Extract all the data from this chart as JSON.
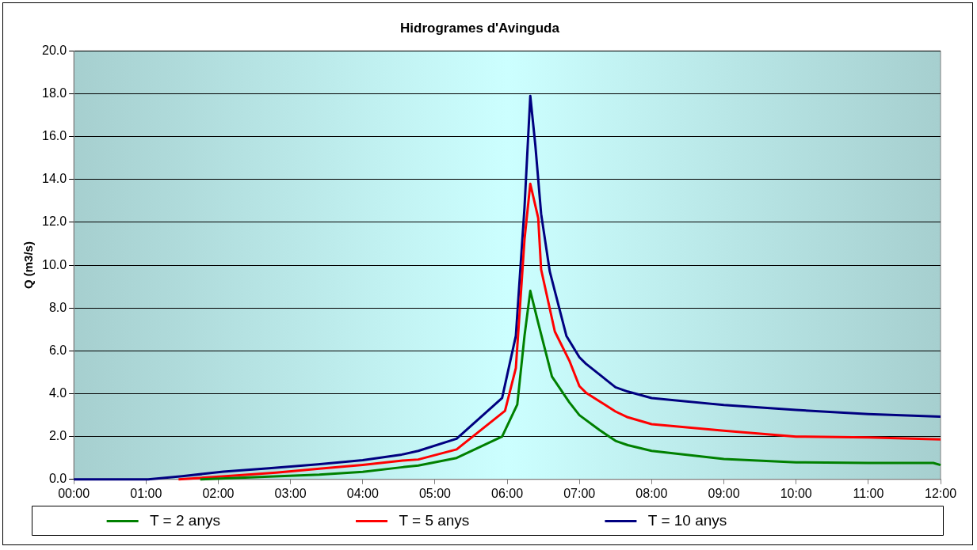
{
  "chart_data": {
    "type": "line",
    "title": "Hidrogrames d'Avinguda",
    "ylabel": "Q (m3/s)",
    "xlim": [
      0,
      12
    ],
    "xticks": [
      {
        "value": 0,
        "label": "00:00"
      },
      {
        "value": 1,
        "label": "01:00"
      },
      {
        "value": 2,
        "label": "02:00"
      },
      {
        "value": 3,
        "label": "03:00"
      },
      {
        "value": 4,
        "label": "04:00"
      },
      {
        "value": 5,
        "label": "05:00"
      },
      {
        "value": 6,
        "label": "06:00"
      },
      {
        "value": 7,
        "label": "07:00"
      },
      {
        "value": 8,
        "label": "08:00"
      },
      {
        "value": 9,
        "label": "09:00"
      },
      {
        "value": 10,
        "label": "10:00"
      },
      {
        "value": 11,
        "label": "11:00"
      },
      {
        "value": 12,
        "label": "12:00"
      }
    ],
    "ylim": [
      0,
      20
    ],
    "yticks": [
      {
        "value": 0,
        "label": "0.0"
      },
      {
        "value": 2,
        "label": "2.0"
      },
      {
        "value": 4,
        "label": "4.0"
      },
      {
        "value": 6,
        "label": "6.0"
      },
      {
        "value": 8,
        "label": "8.0"
      },
      {
        "value": 10,
        "label": "10.0"
      },
      {
        "value": 12,
        "label": "12.0"
      },
      {
        "value": 14,
        "label": "14.0"
      },
      {
        "value": 16,
        "label": "16.0"
      },
      {
        "value": 18,
        "label": "18.0"
      },
      {
        "value": 20,
        "label": "20.0"
      }
    ],
    "grid": "y",
    "legend": "bottom",
    "marker": "none",
    "line_style": "solid",
    "series": [
      {
        "name": "T = 2 anys",
        "color": "#008000",
        "x": [
          1.75,
          2.5,
          3.4,
          4.0,
          4.55,
          4.77,
          5.3,
          5.93,
          6.14,
          6.24,
          6.32,
          6.43,
          6.62,
          6.86,
          7.0,
          7.28,
          7.5,
          7.67,
          8,
          9,
          10,
          11,
          11.9,
          12
        ],
        "values": [
          0,
          0.1,
          0.22,
          0.35,
          0.57,
          0.65,
          1.0,
          2.0,
          3.5,
          6.7,
          8.8,
          7.3,
          4.8,
          3.6,
          3.0,
          2.3,
          1.8,
          1.6,
          1.33,
          0.95,
          0.8,
          0.77,
          0.77,
          0.67
        ]
      },
      {
        "name": "T = 5 anys",
        "color": "#ff0000",
        "x": [
          1.45,
          2.1,
          2.8,
          3.4,
          4.0,
          4.55,
          4.77,
          5.3,
          5.97,
          6.12,
          6.24,
          6.32,
          6.43,
          6.47,
          6.66,
          6.86,
          7.0,
          7.09,
          7.5,
          7.67,
          8,
          9,
          10,
          11,
          12
        ],
        "values": [
          0,
          0.15,
          0.32,
          0.5,
          0.68,
          0.88,
          0.93,
          1.4,
          3.2,
          5.2,
          11.2,
          13.8,
          12.2,
          9.8,
          6.9,
          5.55,
          4.35,
          4.05,
          3.17,
          2.9,
          2.58,
          2.27,
          2.0,
          1.96,
          1.87
        ]
      },
      {
        "name": "T = 10 anys",
        "color": "#000080",
        "x": [
          0,
          1.03,
          1.5,
          2.07,
          2.7,
          3.38,
          4.0,
          4.54,
          4.77,
          5.3,
          5.93,
          6.12,
          6.24,
          6.32,
          6.39,
          6.47,
          6.59,
          6.82,
          7.0,
          7.09,
          7.5,
          7.67,
          8,
          9,
          10,
          11,
          12
        ],
        "values": [
          0,
          0,
          0.15,
          0.36,
          0.52,
          0.7,
          0.9,
          1.16,
          1.33,
          1.9,
          3.8,
          6.7,
          12.7,
          17.9,
          15.6,
          12.4,
          9.7,
          6.7,
          5.7,
          5.4,
          4.3,
          4.1,
          3.8,
          3.47,
          3.24,
          3.05,
          2.93
        ]
      }
    ]
  }
}
